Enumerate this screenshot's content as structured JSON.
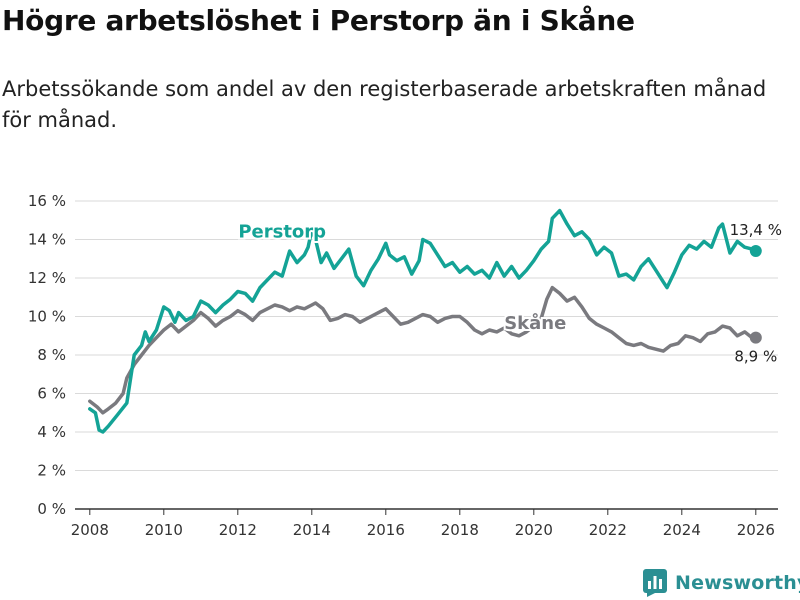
{
  "title": "Högre arbetslöshet i Perstorp än i Skåne",
  "subtitle": "Arbetssökande som andel av den registerbaserade arbetskraften månad för månad.",
  "brand": {
    "name": "Newsworthy",
    "color": "#2b8f93"
  },
  "chart_data": {
    "type": "line",
    "title": "Högre arbetslöshet i Perstorp än i Skåne",
    "xlabel": "",
    "ylabel": "",
    "xlim": [
      2007.6,
      2026.6
    ],
    "ylim": [
      0,
      16
    ],
    "grid": true,
    "x_ticks": [
      2008,
      2010,
      2012,
      2014,
      2016,
      2018,
      2020,
      2022,
      2024,
      2026
    ],
    "x_tick_labels": [
      "2008",
      "2010",
      "2012",
      "2014",
      "2016",
      "2018",
      "2020",
      "2022",
      "2024",
      "2026"
    ],
    "y_ticks": [
      0,
      2,
      4,
      6,
      8,
      10,
      12,
      14,
      16
    ],
    "y_tick_labels": [
      "0 %",
      "2 %",
      "4 %",
      "6 %",
      "8 %",
      "10 %",
      "12 %",
      "14 %",
      "16 %"
    ],
    "series": [
      {
        "name": "Perstorp",
        "color": "#14a396",
        "end_label": "13,4 %",
        "x": [
          2008.0,
          2008.15,
          2008.25,
          2008.35,
          2008.5,
          2008.75,
          2009.0,
          2009.2,
          2009.4,
          2009.5,
          2009.6,
          2009.8,
          2010.0,
          2010.15,
          2010.3,
          2010.4,
          2010.6,
          2010.8,
          2011.0,
          2011.2,
          2011.4,
          2011.6,
          2011.8,
          2012.0,
          2012.2,
          2012.4,
          2012.6,
          2012.8,
          2013.0,
          2013.2,
          2013.4,
          2013.6,
          2013.8,
          2013.9,
          2014.0,
          2014.1,
          2014.25,
          2014.4,
          2014.6,
          2014.8,
          2015.0,
          2015.2,
          2015.4,
          2015.6,
          2015.8,
          2016.0,
          2016.1,
          2016.3,
          2016.5,
          2016.7,
          2016.9,
          2017.0,
          2017.2,
          2017.4,
          2017.6,
          2017.8,
          2018.0,
          2018.2,
          2018.4,
          2018.6,
          2018.8,
          2019.0,
          2019.2,
          2019.4,
          2019.6,
          2019.8,
          2020.0,
          2020.2,
          2020.4,
          2020.5,
          2020.7,
          2020.9,
          2021.1,
          2021.3,
          2021.5,
          2021.7,
          2021.9,
          2022.1,
          2022.3,
          2022.5,
          2022.7,
          2022.9,
          2023.1,
          2023.3,
          2023.5,
          2023.6,
          2023.8,
          2024.0,
          2024.2,
          2024.4,
          2024.6,
          2024.8,
          2025.0,
          2025.1,
          2025.3,
          2025.5,
          2025.7,
          2025.9,
          2026.0
        ],
        "values": [
          5.2,
          5.0,
          4.1,
          4.0,
          4.3,
          4.9,
          5.5,
          8.0,
          8.5,
          9.2,
          8.7,
          9.3,
          10.5,
          10.3,
          9.7,
          10.2,
          9.8,
          10.0,
          10.8,
          10.6,
          10.2,
          10.6,
          10.9,
          11.3,
          11.2,
          10.8,
          11.5,
          11.9,
          12.3,
          12.1,
          13.4,
          12.8,
          13.2,
          13.6,
          14.5,
          14.0,
          12.8,
          13.3,
          12.5,
          13.0,
          13.5,
          12.1,
          11.6,
          12.4,
          13.0,
          13.8,
          13.2,
          12.9,
          13.1,
          12.2,
          12.9,
          14.0,
          13.8,
          13.2,
          12.6,
          12.8,
          12.3,
          12.6,
          12.2,
          12.4,
          12.0,
          12.8,
          12.1,
          12.6,
          12.0,
          12.4,
          12.9,
          13.5,
          13.9,
          15.1,
          15.5,
          14.8,
          14.2,
          14.4,
          14.0,
          13.2,
          13.6,
          13.3,
          12.1,
          12.2,
          11.9,
          12.6,
          13.0,
          12.4,
          11.8,
          11.5,
          12.3,
          13.2,
          13.7,
          13.5,
          13.9,
          13.6,
          14.6,
          14.8,
          13.3,
          13.9,
          13.6,
          13.5,
          13.4
        ]
      },
      {
        "name": "Skåne",
        "color": "#7a7a7f",
        "end_label": "8,9 %",
        "x": [
          2008.0,
          2008.2,
          2008.35,
          2008.5,
          2008.7,
          2008.9,
          2009.0,
          2009.2,
          2009.4,
          2009.6,
          2009.8,
          2010.0,
          2010.2,
          2010.4,
          2010.6,
          2010.8,
          2011.0,
          2011.2,
          2011.4,
          2011.6,
          2011.8,
          2012.0,
          2012.2,
          2012.4,
          2012.6,
          2012.8,
          2013.0,
          2013.2,
          2013.4,
          2013.6,
          2013.8,
          2014.0,
          2014.1,
          2014.3,
          2014.5,
          2014.7,
          2014.9,
          2015.1,
          2015.3,
          2015.5,
          2015.7,
          2015.9,
          2016.0,
          2016.2,
          2016.4,
          2016.6,
          2016.8,
          2017.0,
          2017.2,
          2017.4,
          2017.6,
          2017.8,
          2018.0,
          2018.2,
          2018.4,
          2018.6,
          2018.8,
          2019.0,
          2019.2,
          2019.4,
          2019.6,
          2019.8,
          2020.0,
          2020.2,
          2020.35,
          2020.5,
          2020.7,
          2020.9,
          2021.1,
          2021.3,
          2021.5,
          2021.7,
          2021.9,
          2022.1,
          2022.3,
          2022.5,
          2022.7,
          2022.9,
          2023.1,
          2023.3,
          2023.5,
          2023.7,
          2023.9,
          2024.1,
          2024.3,
          2024.5,
          2024.7,
          2024.9,
          2025.1,
          2025.3,
          2025.5,
          2025.7,
          2025.9,
          2026.0
        ],
        "values": [
          5.6,
          5.3,
          5.0,
          5.2,
          5.5,
          6.0,
          6.8,
          7.5,
          8.0,
          8.5,
          8.9,
          9.3,
          9.6,
          9.2,
          9.5,
          9.8,
          10.2,
          9.9,
          9.5,
          9.8,
          10.0,
          10.3,
          10.1,
          9.8,
          10.2,
          10.4,
          10.6,
          10.5,
          10.3,
          10.5,
          10.4,
          10.6,
          10.7,
          10.4,
          9.8,
          9.9,
          10.1,
          10.0,
          9.7,
          9.9,
          10.1,
          10.3,
          10.4,
          10.0,
          9.6,
          9.7,
          9.9,
          10.1,
          10.0,
          9.7,
          9.9,
          10.0,
          10.0,
          9.7,
          9.3,
          9.1,
          9.3,
          9.2,
          9.4,
          9.1,
          9.0,
          9.2,
          9.5,
          9.9,
          10.9,
          11.5,
          11.2,
          10.8,
          11.0,
          10.5,
          9.9,
          9.6,
          9.4,
          9.2,
          8.9,
          8.6,
          8.5,
          8.6,
          8.4,
          8.3,
          8.2,
          8.5,
          8.6,
          9.0,
          8.9,
          8.7,
          9.1,
          9.2,
          9.5,
          9.4,
          9.0,
          9.2,
          8.9,
          8.9
        ]
      }
    ]
  }
}
